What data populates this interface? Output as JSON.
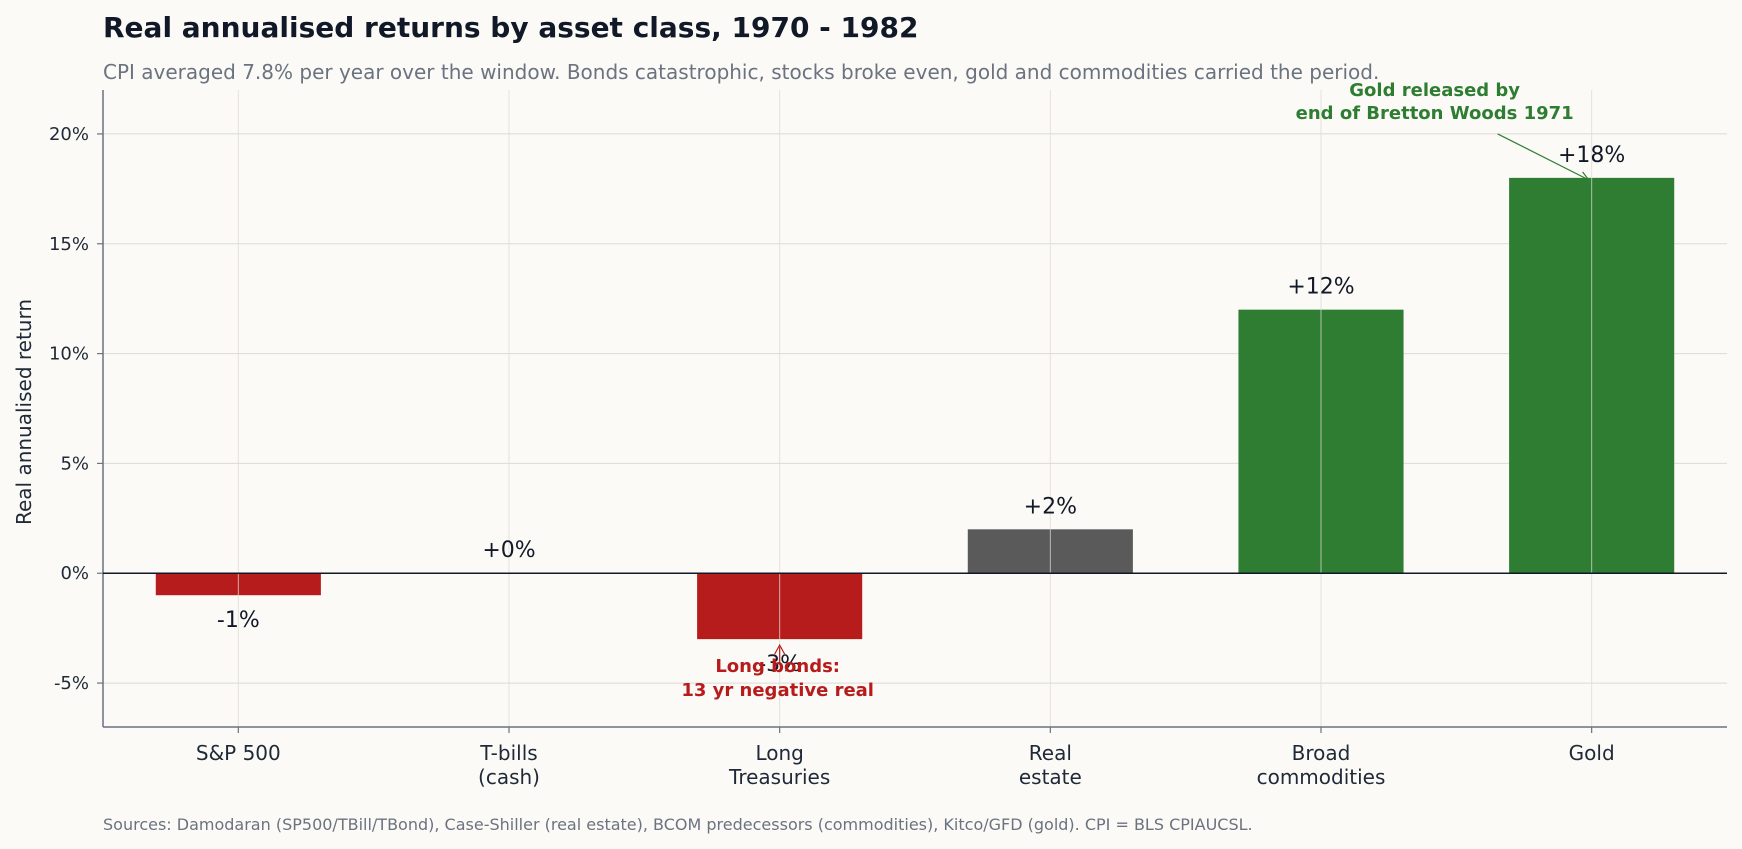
{
  "chart_data": {
    "type": "bar",
    "title": "Real annualised returns by asset class, 1970 - 1982",
    "subtitle": "CPI averaged 7.8% per year over the window. Bonds catastrophic, stocks broke even, gold and commodities carried the period.",
    "source": "Sources: Damodaran (SP500/TBill/TBond), Case-Shiller (real estate), BCOM predecessors (commodities), Kitco/GFD (gold). CPI = BLS CPIAUCSL.",
    "xlabel": "",
    "ylabel": "Real annualised return",
    "ylim": [
      -7,
      22
    ],
    "yticks": [
      -5,
      0,
      5,
      10,
      15,
      20
    ],
    "ytick_labels": [
      "-5%",
      "0%",
      "5%",
      "10%",
      "15%",
      "20%"
    ],
    "grid": true,
    "categories": [
      [
        "S&P 500"
      ],
      [
        "T-bills",
        "(cash)"
      ],
      [
        "Long",
        "Treasuries"
      ],
      [
        "Real",
        "estate"
      ],
      [
        "Broad",
        "commodities"
      ],
      [
        "Gold"
      ]
    ],
    "values": [
      -1,
      0,
      -3,
      2,
      12,
      18
    ],
    "value_labels": [
      "-1%",
      "+0%",
      "-3%",
      "+2%",
      "+12%",
      "+18%"
    ],
    "bar_colors": [
      "#b71c1c",
      "#9e9e9e",
      "#b71c1c",
      "#5a5a5a",
      "#2e7d32",
      "#2e7d32"
    ],
    "annotations": [
      {
        "lines": [
          "Long bonds:",
          "13 yr negative real"
        ],
        "category_index": 2,
        "color": "#b71c1c"
      },
      {
        "lines": [
          "Gold released by",
          "end of Bretton Woods 1971"
        ],
        "category_index": 5,
        "color": "#2e7d32"
      }
    ]
  }
}
